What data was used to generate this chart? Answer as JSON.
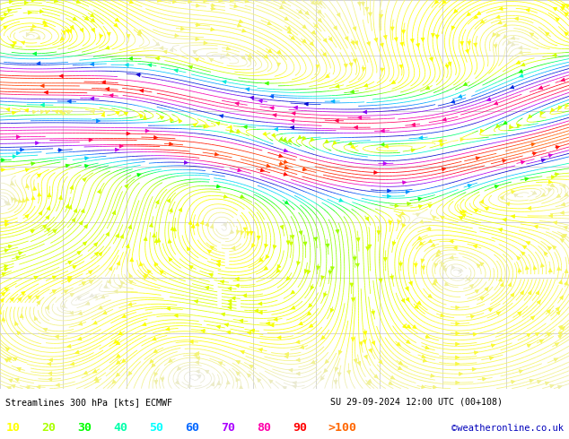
{
  "title": "Streamlines 300 hPa [kts] ECMWF",
  "datetime_str": "SU 29-09-2024 12:00 UTC (00+108)",
  "credit": "©weatheronline.co.uk",
  "legend_values": [
    10,
    20,
    30,
    40,
    50,
    60,
    70,
    80,
    90
  ],
  "legend_label_gt": ">100",
  "legend_colors": [
    "#ffff00",
    "#aaff00",
    "#00ff00",
    "#00ffaa",
    "#00ffff",
    "#0066ff",
    "#aa00ff",
    "#ff00aa",
    "#ff0000"
  ],
  "legend_gt_color": "#ff6600",
  "background_color": "#ffffff",
  "map_bg": "#ffffff",
  "grid_color": "#aaaaaa",
  "text_color": "#000000",
  "fig_width": 6.34,
  "fig_height": 4.9,
  "dpi": 100,
  "colormap_speeds": [
    0,
    10,
    20,
    30,
    40,
    50,
    60,
    70,
    80,
    90,
    100,
    120
  ],
  "colormap_hex": [
    "#e8e8e8",
    "#ffff00",
    "#ccff00",
    "#00ff00",
    "#00ffcc",
    "#00ccff",
    "#0066ff",
    "#0000cc",
    "#aa00ff",
    "#ff00aa",
    "#ff0000",
    "#ff6600"
  ],
  "seed": 12345,
  "grid_nx": 9,
  "grid_ny": 7
}
